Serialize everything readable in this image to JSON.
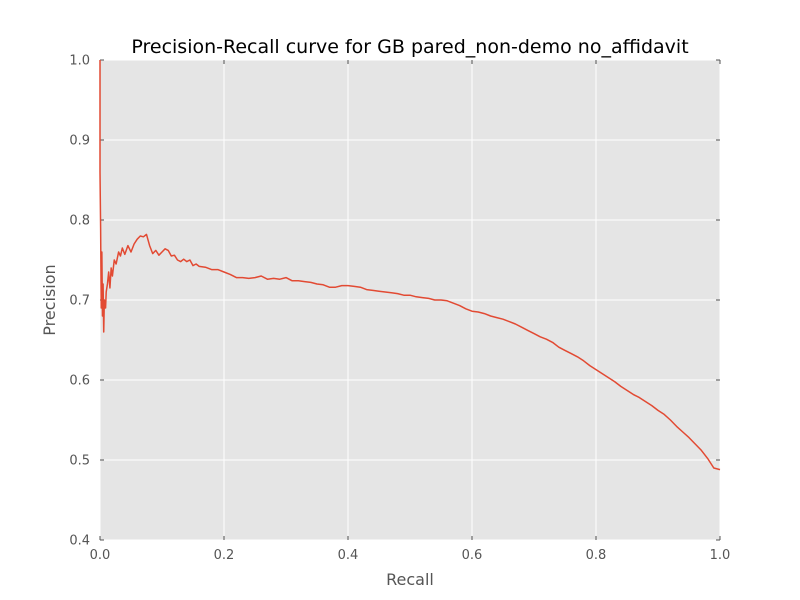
{
  "chart_data": {
    "type": "line",
    "title": "Precision-Recall curve for GB pared_non-demo no_affidavit",
    "xlabel": "Recall",
    "ylabel": "Precision",
    "xlim": [
      0.0,
      1.0
    ],
    "ylim": [
      0.4,
      1.0
    ],
    "grid": true,
    "x_ticks": [
      "0.0",
      "0.2",
      "0.4",
      "0.6",
      "0.8",
      "1.0"
    ],
    "y_ticks": [
      "0.4",
      "0.5",
      "0.6",
      "0.7",
      "0.8",
      "0.9",
      "1.0"
    ],
    "series": [
      {
        "color": "#E24A33",
        "points": [
          [
            0.0,
            1.0
          ],
          [
            0.0,
            0.86
          ],
          [
            0.001,
            0.79
          ],
          [
            0.002,
            0.69
          ],
          [
            0.003,
            0.76
          ],
          [
            0.004,
            0.68
          ],
          [
            0.005,
            0.72
          ],
          [
            0.006,
            0.66
          ],
          [
            0.007,
            0.7
          ],
          [
            0.009,
            0.69
          ],
          [
            0.01,
            0.71
          ],
          [
            0.012,
            0.72
          ],
          [
            0.014,
            0.735
          ],
          [
            0.016,
            0.715
          ],
          [
            0.018,
            0.74
          ],
          [
            0.02,
            0.73
          ],
          [
            0.023,
            0.75
          ],
          [
            0.026,
            0.745
          ],
          [
            0.03,
            0.76
          ],
          [
            0.033,
            0.755
          ],
          [
            0.036,
            0.765
          ],
          [
            0.04,
            0.757
          ],
          [
            0.045,
            0.768
          ],
          [
            0.05,
            0.76
          ],
          [
            0.055,
            0.77
          ],
          [
            0.06,
            0.776
          ],
          [
            0.065,
            0.78
          ],
          [
            0.07,
            0.779
          ],
          [
            0.075,
            0.782
          ],
          [
            0.08,
            0.768
          ],
          [
            0.085,
            0.758
          ],
          [
            0.09,
            0.762
          ],
          [
            0.095,
            0.756
          ],
          [
            0.1,
            0.76
          ],
          [
            0.105,
            0.764
          ],
          [
            0.11,
            0.762
          ],
          [
            0.115,
            0.755
          ],
          [
            0.12,
            0.756
          ],
          [
            0.125,
            0.75
          ],
          [
            0.13,
            0.748
          ],
          [
            0.135,
            0.751
          ],
          [
            0.14,
            0.748
          ],
          [
            0.145,
            0.75
          ],
          [
            0.15,
            0.743
          ],
          [
            0.155,
            0.745
          ],
          [
            0.16,
            0.742
          ],
          [
            0.17,
            0.741
          ],
          [
            0.18,
            0.738
          ],
          [
            0.19,
            0.738
          ],
          [
            0.2,
            0.735
          ],
          [
            0.21,
            0.732
          ],
          [
            0.22,
            0.728
          ],
          [
            0.23,
            0.728
          ],
          [
            0.24,
            0.727
          ],
          [
            0.25,
            0.728
          ],
          [
            0.26,
            0.73
          ],
          [
            0.27,
            0.726
          ],
          [
            0.28,
            0.727
          ],
          [
            0.29,
            0.726
          ],
          [
            0.3,
            0.728
          ],
          [
            0.31,
            0.724
          ],
          [
            0.32,
            0.724
          ],
          [
            0.33,
            0.723
          ],
          [
            0.34,
            0.722
          ],
          [
            0.35,
            0.72
          ],
          [
            0.36,
            0.719
          ],
          [
            0.37,
            0.716
          ],
          [
            0.38,
            0.716
          ],
          [
            0.39,
            0.718
          ],
          [
            0.4,
            0.718
          ],
          [
            0.41,
            0.717
          ],
          [
            0.42,
            0.716
          ],
          [
            0.43,
            0.713
          ],
          [
            0.44,
            0.712
          ],
          [
            0.45,
            0.711
          ],
          [
            0.46,
            0.71
          ],
          [
            0.47,
            0.709
          ],
          [
            0.48,
            0.708
          ],
          [
            0.49,
            0.706
          ],
          [
            0.5,
            0.706
          ],
          [
            0.51,
            0.704
          ],
          [
            0.52,
            0.703
          ],
          [
            0.53,
            0.702
          ],
          [
            0.54,
            0.7
          ],
          [
            0.55,
            0.7
          ],
          [
            0.56,
            0.699
          ],
          [
            0.57,
            0.696
          ],
          [
            0.58,
            0.693
          ],
          [
            0.59,
            0.689
          ],
          [
            0.6,
            0.686
          ],
          [
            0.61,
            0.685
          ],
          [
            0.62,
            0.683
          ],
          [
            0.63,
            0.68
          ],
          [
            0.64,
            0.678
          ],
          [
            0.65,
            0.676
          ],
          [
            0.66,
            0.673
          ],
          [
            0.67,
            0.67
          ],
          [
            0.68,
            0.666
          ],
          [
            0.69,
            0.662
          ],
          [
            0.7,
            0.658
          ],
          [
            0.71,
            0.654
          ],
          [
            0.72,
            0.651
          ],
          [
            0.73,
            0.647
          ],
          [
            0.74,
            0.641
          ],
          [
            0.75,
            0.637
          ],
          [
            0.76,
            0.633
          ],
          [
            0.77,
            0.629
          ],
          [
            0.78,
            0.624
          ],
          [
            0.79,
            0.618
          ],
          [
            0.8,
            0.613
          ],
          [
            0.81,
            0.608
          ],
          [
            0.82,
            0.603
          ],
          [
            0.83,
            0.598
          ],
          [
            0.84,
            0.592
          ],
          [
            0.85,
            0.587
          ],
          [
            0.86,
            0.582
          ],
          [
            0.87,
            0.578
          ],
          [
            0.88,
            0.573
          ],
          [
            0.89,
            0.568
          ],
          [
            0.9,
            0.562
          ],
          [
            0.91,
            0.557
          ],
          [
            0.92,
            0.55
          ],
          [
            0.93,
            0.542
          ],
          [
            0.94,
            0.535
          ],
          [
            0.95,
            0.528
          ],
          [
            0.96,
            0.52
          ],
          [
            0.97,
            0.512
          ],
          [
            0.98,
            0.502
          ],
          [
            0.99,
            0.49
          ],
          [
            1.0,
            0.488
          ]
        ]
      }
    ]
  },
  "colors": {
    "plot_background": "#E5E5E5",
    "grid": "#FFFFFF",
    "series": "#E24A33",
    "text": "#555555",
    "title": "#000000"
  }
}
